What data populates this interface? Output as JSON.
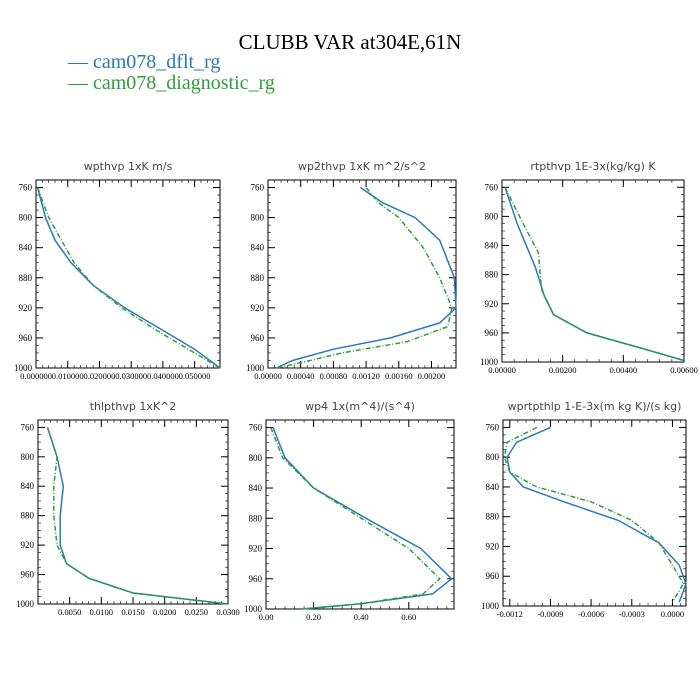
{
  "title": "CLUBB VAR at304E,61N",
  "legend": [
    {
      "label": "— cam078_dflt_rg",
      "color": "#2a7ab8"
    },
    {
      "label": "— cam078_diagnostic_rg",
      "color": "#2e9e3a"
    }
  ],
  "chart_data": [
    {
      "type": "line",
      "title": "wpthvp   1xK m/s",
      "ylim": [
        1000,
        750
      ],
      "xlim": [
        0.0,
        0.058
      ],
      "yticks": [
        760,
        800,
        840,
        880,
        920,
        960,
        1000
      ],
      "xticks": [
        0.0,
        0.01,
        0.02,
        0.03,
        0.04,
        0.05
      ],
      "xtick_labels": [
        "0.000000",
        "0.010000",
        "0.020000",
        "0.030000",
        "0.040000",
        "0.050000"
      ],
      "series": [
        {
          "name": "cam078_dflt_rg",
          "x": [
            0.0005,
            0.003,
            0.006,
            0.011,
            0.018,
            0.028,
            0.04,
            0.05,
            0.058
          ],
          "y": [
            760,
            800,
            830,
            860,
            890,
            920,
            950,
            975,
            1000
          ]
        },
        {
          "name": "cam078_diagnostic_rg",
          "x": [
            0.0005,
            0.004,
            0.008,
            0.012,
            0.018,
            0.027,
            0.038,
            0.048,
            0.058
          ],
          "y": [
            760,
            800,
            830,
            860,
            890,
            920,
            950,
            975,
            1000
          ]
        }
      ]
    },
    {
      "type": "line",
      "title": "wp2thvp   1xK m^2/s^2",
      "ylim": [
        1000,
        750
      ],
      "xlim": [
        0.0,
        0.0023
      ],
      "yticks": [
        760,
        800,
        840,
        880,
        920,
        960,
        1000
      ],
      "xticks": [
        0.0,
        0.0004,
        0.0008,
        0.0012,
        0.0016,
        0.002
      ],
      "xtick_labels": [
        "0.00000",
        "0.00040",
        "0.00080",
        "0.00120",
        "0.00160",
        "0.00200"
      ],
      "series": [
        {
          "name": "cam078_dflt_rg",
          "x": [
            0.00113,
            0.0014,
            0.0018,
            0.0021,
            0.00228,
            0.0023,
            0.0021,
            0.0015,
            0.0008,
            0.0003,
            0.0001
          ],
          "y": [
            760,
            780,
            800,
            830,
            880,
            920,
            940,
            960,
            975,
            990,
            1000
          ]
        },
        {
          "name": "cam078_diagnostic_rg",
          "x": [
            0.0012,
            0.00135,
            0.0016,
            0.0019,
            0.0021,
            0.00225,
            0.0022,
            0.0017,
            0.0009,
            0.0004,
            0.0001
          ],
          "y": [
            760,
            780,
            800,
            840,
            880,
            920,
            945,
            965,
            980,
            993,
            1000
          ]
        }
      ]
    },
    {
      "type": "line",
      "title": "rtpthvp   1E-3x(kg/kg) K",
      "ylim": [
        1000,
        750
      ],
      "xlim": [
        0.0,
        0.006
      ],
      "yticks": [
        760,
        800,
        840,
        880,
        920,
        960,
        1000
      ],
      "xticks": [
        0.0,
        0.002,
        0.004,
        0.006
      ],
      "xtick_labels": [
        "0.00000",
        "0.00200",
        "0.00400",
        "0.00600"
      ],
      "series": [
        {
          "name": "cam078_dflt_rg",
          "x": [
            0.0001,
            0.0005,
            0.0011,
            0.0014,
            0.0017,
            0.0028,
            0.0045,
            0.006
          ],
          "y": [
            760,
            810,
            870,
            910,
            935,
            960,
            980,
            998
          ]
        },
        {
          "name": "cam078_diagnostic_rg",
          "x": [
            0.0001,
            0.0007,
            0.0012,
            0.0013,
            0.0017,
            0.0028,
            0.0045,
            0.006
          ],
          "y": [
            760,
            810,
            850,
            900,
            935,
            960,
            980,
            998
          ]
        }
      ]
    },
    {
      "type": "line",
      "title": "thlpthvp   1xK^2",
      "ylim": [
        1000,
        750
      ],
      "xlim": [
        0.0,
        0.03
      ],
      "yticks": [
        760,
        800,
        840,
        880,
        920,
        960,
        1000
      ],
      "xticks": [
        0.005,
        0.01,
        0.015,
        0.02,
        0.025,
        0.03
      ],
      "xtick_labels": [
        "0.0050",
        "0.0100",
        "0.0150",
        "0.0200",
        "0.0250",
        "0.0300"
      ],
      "series": [
        {
          "name": "cam078_dflt_rg",
          "x": [
            0.0015,
            0.003,
            0.004,
            0.0035,
            0.0035,
            0.0045,
            0.008,
            0.015,
            0.03
          ],
          "y": [
            760,
            800,
            840,
            880,
            920,
            945,
            965,
            985,
            1000
          ]
        },
        {
          "name": "cam078_diagnostic_rg",
          "x": [
            0.0015,
            0.003,
            0.0025,
            0.0025,
            0.003,
            0.0045,
            0.008,
            0.015,
            0.03
          ],
          "y": [
            760,
            800,
            840,
            880,
            920,
            945,
            965,
            985,
            1000
          ]
        }
      ]
    },
    {
      "type": "line",
      "title": "wp4   1x(m^4)/(s^4)",
      "ylim": [
        1000,
        750
      ],
      "xlim": [
        0.0,
        0.79
      ],
      "yticks": [
        760,
        800,
        840,
        880,
        920,
        960,
        1000
      ],
      "xticks": [
        0.0,
        0.2,
        0.4,
        0.6
      ],
      "xtick_labels": [
        "0.00",
        "0.20",
        "0.40",
        "0.60"
      ],
      "series": [
        {
          "name": "cam078_dflt_rg",
          "x": [
            0.03,
            0.08,
            0.2,
            0.42,
            0.65,
            0.78,
            0.7,
            0.4,
            0.15
          ],
          "y": [
            760,
            800,
            840,
            880,
            920,
            960,
            980,
            993,
            1000
          ]
        },
        {
          "name": "cam078_diagnostic_rg",
          "x": [
            0.02,
            0.07,
            0.2,
            0.4,
            0.6,
            0.73,
            0.66,
            0.4,
            0.15
          ],
          "y": [
            760,
            800,
            840,
            880,
            920,
            960,
            980,
            993,
            1000
          ]
        }
      ]
    },
    {
      "type": "line",
      "title": "wprtpthlp   1-E-3x(m kg K)/(s kg)",
      "ylim": [
        1000,
        750
      ],
      "xlim": [
        -0.00125,
        0.0001
      ],
      "yticks": [
        760,
        800,
        840,
        880,
        920,
        960,
        1000
      ],
      "xticks": [
        -0.0012,
        -0.0009,
        -0.0006,
        -0.0003,
        0.0
      ],
      "xtick_labels": [
        "-0.0012",
        "-0.0009",
        "-0.0006",
        "-0.0003",
        "0.0000"
      ],
      "series": [
        {
          "name": "cam078_dflt_rg",
          "x": [
            -0.0009,
            -0.00115,
            -0.00122,
            -0.0012,
            -0.0011,
            -0.0008,
            -0.0004,
            -0.0001,
            5e-05,
            0.0001,
            5e-05
          ],
          "y": [
            760,
            780,
            800,
            820,
            840,
            860,
            885,
            915,
            945,
            970,
            995
          ]
        },
        {
          "name": "cam078_diagnostic_rg",
          "x": [
            -0.001,
            -0.00122,
            -0.00124,
            -0.0012,
            -0.001,
            -0.0006,
            -0.0003,
            -0.0001,
            0.0,
            8e-05,
            0.0
          ],
          "y": [
            760,
            780,
            800,
            820,
            840,
            860,
            885,
            915,
            945,
            970,
            995
          ]
        }
      ]
    }
  ]
}
